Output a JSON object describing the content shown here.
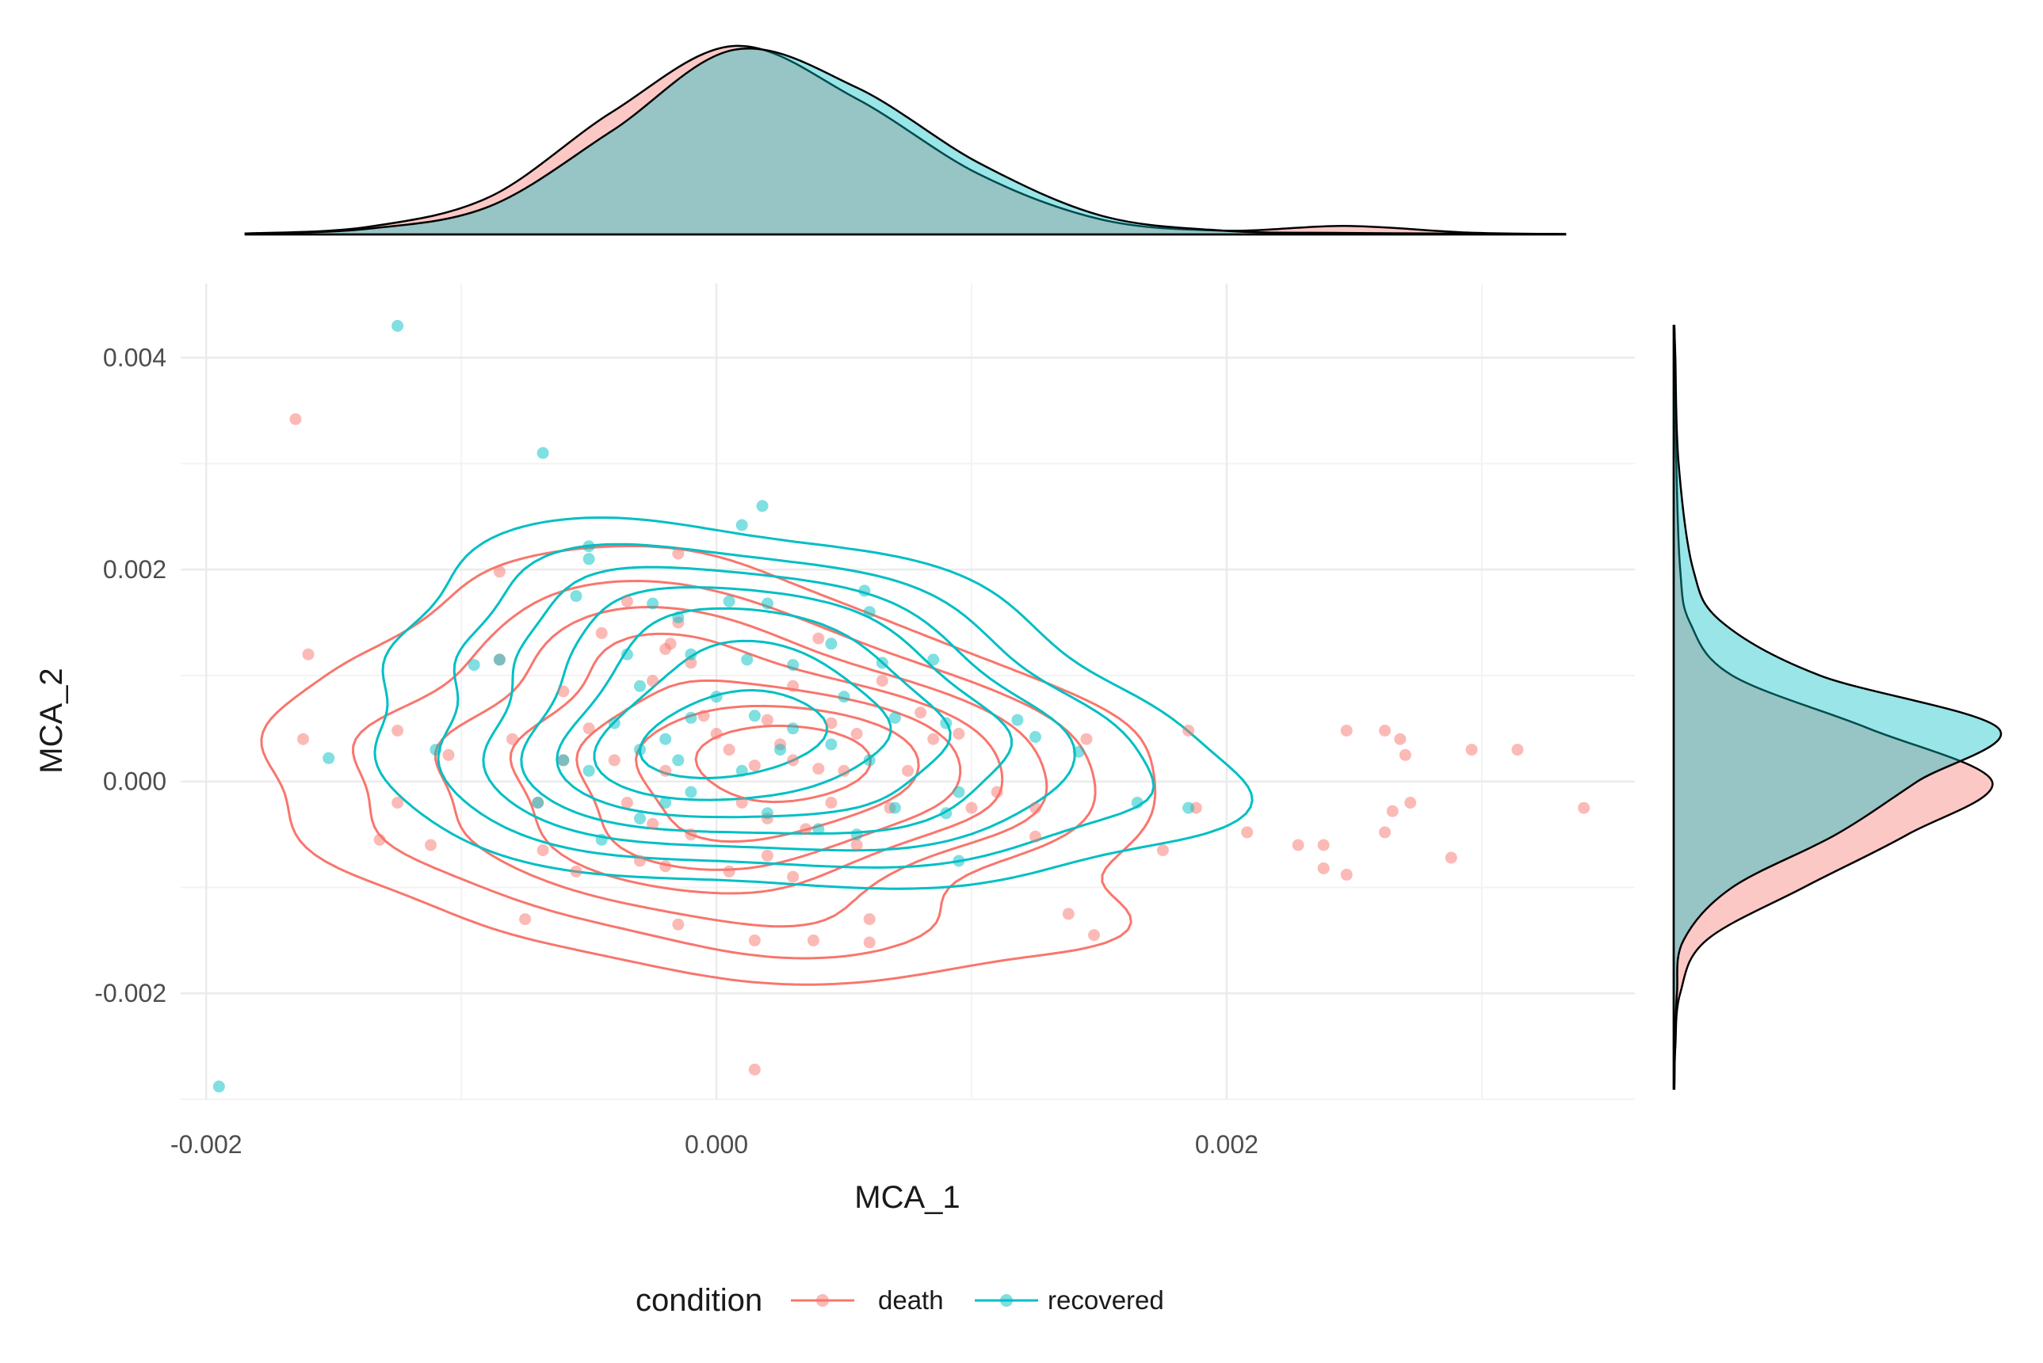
{
  "chart_data": {
    "type": "scatter",
    "subtype": "marginal-density-scatter-with-2d-density-contours",
    "xlabel": "MCA_1",
    "ylabel": "MCA_2",
    "xlim": [
      -0.0021,
      0.0036
    ],
    "ylim": [
      -0.003,
      0.0047
    ],
    "x_ticks": [
      -0.002,
      0.0,
      0.002
    ],
    "x_tick_labels": [
      "-0.002",
      "0.000",
      "0.002"
    ],
    "y_ticks": [
      -0.002,
      0.0,
      0.002,
      0.004
    ],
    "y_tick_labels": [
      "-0.002",
      "0.000",
      "0.002",
      "0.004"
    ],
    "grid": true,
    "legend": {
      "title": "condition",
      "position": "bottom",
      "entries": [
        "death",
        "recovered"
      ]
    },
    "colors": {
      "death": "#F8766D",
      "recovered": "#00BFC4"
    },
    "series": [
      {
        "name": "death",
        "color": "#F8766D",
        "points": [
          [
            -0.00165,
            0.00342
          ],
          [
            -0.0016,
            0.0012
          ],
          [
            -0.00162,
            0.0004
          ],
          [
            -0.00125,
            0.00048
          ],
          [
            -0.00105,
            0.00025
          ],
          [
            -0.00125,
            -0.0002
          ],
          [
            -0.00132,
            -0.00055
          ],
          [
            -0.00112,
            -0.0006
          ],
          [
            -0.00085,
            0.00198
          ],
          [
            -0.00085,
            0.00115
          ],
          [
            -0.0007,
            -0.0002
          ],
          [
            -0.00068,
            -0.00065
          ],
          [
            -0.00075,
            -0.0013
          ],
          [
            -0.0006,
            0.00085
          ],
          [
            -0.00035,
            0.0017
          ],
          [
            -0.00045,
            0.0014
          ],
          [
            -0.00025,
            0.00095
          ],
          [
            -0.0004,
            0.0002
          ],
          [
            -0.0002,
            -0.0008
          ],
          [
            -0.00015,
            -0.00135
          ],
          [
            -0.0002,
            0.00125
          ],
          [
            -0.00015,
            0.0015
          ],
          [
            -0.00018,
            0.0013
          ],
          [
            -0.0001,
            0.00112
          ],
          [
            -5e-05,
            0.00062
          ],
          [
            0.0,
            0.00045
          ],
          [
            5e-05,
            0.0003
          ],
          [
            0.00015,
            0.00015
          ],
          [
            0.0002,
            0.00058
          ],
          [
            0.00025,
            0.00035
          ],
          [
            0.0003,
            0.0002
          ],
          [
            0.0004,
            0.00012
          ],
          [
            0.00045,
            0.00055
          ],
          [
            0.00055,
            0.00045
          ],
          [
            0.00065,
            0.00095
          ],
          [
            0.0004,
            0.00135
          ],
          [
            0.00045,
            -0.0002
          ],
          [
            0.00035,
            -0.00045
          ],
          [
            0.0002,
            -0.0007
          ],
          [
            5e-05,
            -0.00085
          ],
          [
            -0.0001,
            -0.0005
          ],
          [
            -0.00025,
            -0.0004
          ],
          [
            -0.0003,
            -0.00075
          ],
          [
            0.00015,
            -0.0015
          ],
          [
            0.00038,
            -0.0015
          ],
          [
            0.0006,
            -0.0013
          ],
          [
            0.0006,
            -0.00152
          ],
          [
            0.00095,
            0.00045
          ],
          [
            0.001,
            -0.00025
          ],
          [
            0.0011,
            -0.0001
          ],
          [
            0.00125,
            -0.00025
          ],
          [
            0.00125,
            -0.00052
          ],
          [
            0.00145,
            0.0004
          ],
          [
            0.00138,
            -0.00125
          ],
          [
            0.00148,
            -0.00145
          ],
          [
            0.00185,
            0.00048
          ],
          [
            0.00175,
            -0.00065
          ],
          [
            0.00188,
            -0.00025
          ],
          [
            0.00208,
            -0.00048
          ],
          [
            0.00228,
            -0.0006
          ],
          [
            0.00238,
            -0.0006
          ],
          [
            0.00238,
            -0.00082
          ],
          [
            0.00247,
            -0.00088
          ],
          [
            0.00247,
            0.00048
          ],
          [
            0.00265,
            -0.00028
          ],
          [
            0.00262,
            0.00048
          ],
          [
            0.00268,
            0.0004
          ],
          [
            0.0027,
            0.00025
          ],
          [
            0.00262,
            -0.00048
          ],
          [
            0.00272,
            -0.0002
          ],
          [
            0.00288,
            -0.00072
          ],
          [
            0.00296,
            0.0003
          ],
          [
            0.00314,
            0.0003
          ],
          [
            0.0034,
            -0.00025
          ],
          [
            0.00015,
            -0.00272
          ],
          [
            -0.00015,
            0.00215
          ],
          [
            0.00085,
            0.0004
          ],
          [
            0.00075,
            0.0001
          ],
          [
            0.00055,
            -0.0006
          ],
          [
            0.0003,
            -0.0009
          ],
          [
            -0.0005,
            0.0005
          ],
          [
            -0.0006,
            0.0002
          ],
          [
            -0.00035,
            -0.0002
          ],
          [
            -0.0002,
            0.0001
          ],
          [
            0.0001,
            -0.0002
          ],
          [
            0.0002,
            -0.00035
          ],
          [
            0.0005,
            0.0001
          ],
          [
            0.00068,
            -0.00025
          ],
          [
            -0.00055,
            -0.00085
          ],
          [
            -0.0008,
            0.0004
          ],
          [
            0.0003,
            0.0009
          ],
          [
            0.0008,
            0.00065
          ]
        ]
      },
      {
        "name": "recovered",
        "color": "#00BFC4",
        "points": [
          [
            -0.00125,
            0.0043
          ],
          [
            -0.00068,
            0.0031
          ],
          [
            0.00018,
            0.0026
          ],
          [
            0.0001,
            0.00242
          ],
          [
            -0.00195,
            -0.00288
          ],
          [
            -0.00152,
            0.00022
          ],
          [
            -0.0011,
            0.0003
          ],
          [
            -0.00095,
            0.0011
          ],
          [
            -0.00085,
            0.00115
          ],
          [
            -0.0005,
            0.00222
          ],
          [
            -0.0005,
            0.0021
          ],
          [
            -0.00055,
            0.00175
          ],
          [
            -0.00025,
            0.00168
          ],
          [
            -0.00015,
            0.00155
          ],
          [
            -0.0001,
            0.0012
          ],
          [
            5e-05,
            0.0017
          ],
          [
            0.0002,
            0.00168
          ],
          [
            0.00058,
            0.0018
          ],
          [
            0.0006,
            0.0016
          ],
          [
            0.00045,
            0.0013
          ],
          [
            0.00065,
            0.00112
          ],
          [
            0.00085,
            0.00115
          ],
          [
            0.0009,
            0.00055
          ],
          [
            0.00118,
            0.00058
          ],
          [
            0.00125,
            0.00042
          ],
          [
            0.00142,
            0.00028
          ],
          [
            0.00165,
            -0.0002
          ],
          [
            0.00185,
            -0.00025
          ],
          [
            0.00095,
            -0.0001
          ],
          [
            0.00095,
            -0.00075
          ],
          [
            0.0009,
            -0.0003
          ],
          [
            0.0007,
            -0.00025
          ],
          [
            0.0006,
            0.0002
          ],
          [
            0.00045,
            0.00035
          ],
          [
            0.0003,
            0.0005
          ],
          [
            0.00015,
            0.00062
          ],
          [
            0.0,
            0.0008
          ],
          [
            -0.0001,
            0.0006
          ],
          [
            -0.0002,
            0.0004
          ],
          [
            -0.0003,
            0.0003
          ],
          [
            -0.0004,
            0.00055
          ],
          [
            -0.0005,
            0.0001
          ],
          [
            -0.00045,
            -0.00055
          ],
          [
            -0.0003,
            -0.00035
          ],
          [
            -0.0002,
            -0.0002
          ],
          [
            -0.0001,
            -0.0001
          ],
          [
            0.0001,
            0.0001
          ],
          [
            0.0002,
            -0.0003
          ],
          [
            0.0004,
            -0.00045
          ],
          [
            0.00055,
            -0.0005
          ],
          [
            0.0007,
            0.0006
          ],
          [
            0.0005,
            0.0008
          ],
          [
            0.0003,
            0.0011
          ],
          [
            -0.0003,
            0.0009
          ],
          [
            -0.0006,
            0.0002
          ],
          [
            -0.0007,
            -0.0002
          ],
          [
            -0.00035,
            0.0012
          ],
          [
            0.00012,
            0.00115
          ],
          [
            0.00025,
            0.0003
          ],
          [
            -0.00015,
            0.0002
          ]
        ]
      }
    ],
    "marginal_x_density": {
      "x": [
        -0.002,
        -0.0015,
        -0.001,
        -0.0005,
        0.0,
        0.0005,
        0.001,
        0.0015,
        0.002,
        0.0025,
        0.003,
        0.0034
      ],
      "death": [
        0.005,
        0.04,
        0.2,
        0.65,
        1.0,
        0.72,
        0.32,
        0.08,
        0.02,
        0.045,
        0.01,
        0.002
      ],
      "recovered": [
        0.005,
        0.03,
        0.15,
        0.55,
        0.98,
        0.78,
        0.38,
        0.1,
        0.02,
        0.008,
        0.004,
        0.002
      ]
    },
    "marginal_y_density": {
      "y": [
        -0.0029,
        -0.0025,
        -0.002,
        -0.0015,
        -0.001,
        -0.0005,
        0.0,
        0.0005,
        0.001,
        0.0015,
        0.002,
        0.003,
        0.004,
        0.0043
      ],
      "death": [
        0.002,
        0.005,
        0.02,
        0.1,
        0.4,
        0.72,
        0.98,
        0.6,
        0.18,
        0.05,
        0.02,
        0.008,
        0.004,
        0.002
      ],
      "recovered": [
        0.002,
        0.004,
        0.01,
        0.03,
        0.18,
        0.5,
        0.75,
        1.0,
        0.45,
        0.15,
        0.06,
        0.015,
        0.005,
        0.002
      ]
    }
  }
}
